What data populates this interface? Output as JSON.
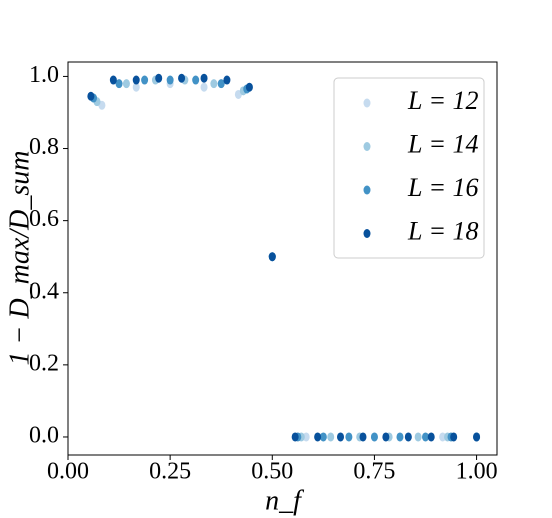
{
  "chart_data": {
    "type": "scatter",
    "xlabel": "n_f",
    "ylabel": "1 − D_max/D_sum",
    "xlim": [
      0.0,
      1.05
    ],
    "ylim": [
      -0.05,
      1.04
    ],
    "xticks": [
      {
        "value": 0,
        "label": "0.00"
      },
      {
        "value": 0.25,
        "label": "0.25"
      },
      {
        "value": 0.5,
        "label": "0.50"
      },
      {
        "value": 0.75,
        "label": "0.75"
      },
      {
        "value": 1,
        "label": "1.00"
      }
    ],
    "yticks": [
      {
        "value": 0,
        "label": "0.0"
      },
      {
        "value": 0.2,
        "label": "0.2"
      },
      {
        "value": 0.4,
        "label": "0.4"
      },
      {
        "value": 0.6,
        "label": "0.6"
      },
      {
        "value": 0.8,
        "label": "0.8"
      },
      {
        "value": 1,
        "label": "1.0"
      }
    ],
    "legend": "upper right",
    "series": [
      {
        "name": "L = 12",
        "color": "#c6dbef",
        "x": [
          0.083,
          0.167,
          0.25,
          0.333,
          0.417,
          0.5,
          0.583,
          0.667,
          0.75,
          0.833,
          0.917,
          1.0
        ],
        "values": [
          0.92,
          0.97,
          0.98,
          0.97,
          0.95,
          0.5,
          0,
          0,
          0,
          0,
          0,
          0
        ]
      },
      {
        "name": "L = 14",
        "color": "#9ecae1",
        "x": [
          0.071,
          0.143,
          0.214,
          0.286,
          0.357,
          0.429,
          0.5,
          0.571,
          0.643,
          0.714,
          0.786,
          0.857,
          0.929,
          1.0
        ],
        "values": [
          0.93,
          0.98,
          0.99,
          0.99,
          0.98,
          0.96,
          0.5,
          0,
          0,
          0,
          0,
          0,
          0,
          0
        ]
      },
      {
        "name": "L = 16",
        "color": "#4292c6",
        "x": [
          0.0625,
          0.125,
          0.1875,
          0.25,
          0.3125,
          0.375,
          0.4375,
          0.5,
          0.5625,
          0.625,
          0.6875,
          0.75,
          0.8125,
          0.875,
          0.9375,
          1.0
        ],
        "values": [
          0.94,
          0.98,
          0.99,
          0.99,
          0.99,
          0.98,
          0.965,
          0.5,
          0,
          0,
          0,
          0,
          0,
          0,
          0,
          0
        ]
      },
      {
        "name": "L = 18",
        "color": "#08519c",
        "x": [
          0.056,
          0.111,
          0.167,
          0.222,
          0.278,
          0.333,
          0.389,
          0.444,
          0.5,
          0.556,
          0.611,
          0.667,
          0.722,
          0.778,
          0.833,
          0.889,
          0.944,
          1.0
        ],
        "values": [
          0.945,
          0.99,
          0.99,
          0.995,
          0.995,
          0.995,
          0.99,
          0.97,
          0.5,
          0,
          0,
          0,
          0,
          0,
          0,
          0,
          0,
          0
        ]
      }
    ]
  }
}
